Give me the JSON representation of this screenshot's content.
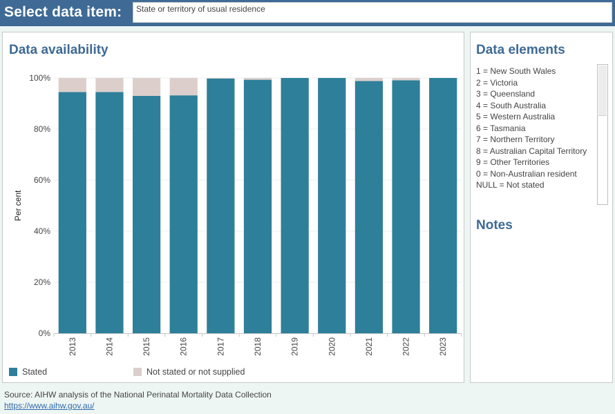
{
  "header": {
    "title": "Select data item:",
    "selector_value": "State or territory of usual residence"
  },
  "left_panel": {
    "title": "Data availability"
  },
  "right_panel": {
    "title": "Data elements",
    "items": [
      "1 = New South Wales",
      "2 = Victoria",
      "3 = Queensland",
      "4 = South Australia",
      "5 = Western Australia",
      "6 = Tasmania",
      "7 = Northern Territory",
      "8 = Australian Capital Territory",
      "9 = Other Territories",
      "0 = Non-Australian resident",
      "NULL = Not stated"
    ],
    "notes_title": "Notes"
  },
  "footer": {
    "source": "Source: AIHW analysis of the National Perinatal Mortality Data Collection",
    "link": "https://www.aihw.gov.au/"
  },
  "colors": {
    "stated": "#2e7f99",
    "not_stated": "#dccfcb",
    "accent": "#3e6a95"
  },
  "chart_data": {
    "type": "bar",
    "stacked": true,
    "ylabel": "Per cent",
    "xlabel": "",
    "ylim": [
      0,
      100
    ],
    "yticks": [
      "0%",
      "20%",
      "40%",
      "60%",
      "80%",
      "100%"
    ],
    "ytick_values": [
      0,
      20,
      40,
      60,
      80,
      100
    ],
    "grid": true,
    "legend_position": "bottom",
    "categories": [
      "2013",
      "2014",
      "2015",
      "2016",
      "2017",
      "2018",
      "2019",
      "2020",
      "2021",
      "2022",
      "2023"
    ],
    "series": [
      {
        "name": "Stated",
        "color": "#2e7f99",
        "values": [
          94.5,
          94.5,
          93.0,
          93.2,
          99.8,
          99.3,
          100.0,
          100.0,
          98.8,
          99.1,
          100.0
        ]
      },
      {
        "name": "Not stated or not supplied",
        "color": "#dccfcb",
        "values": [
          5.5,
          5.5,
          7.0,
          6.8,
          0.2,
          0.7,
          0.0,
          0.0,
          1.2,
          0.9,
          0.0
        ]
      }
    ]
  }
}
